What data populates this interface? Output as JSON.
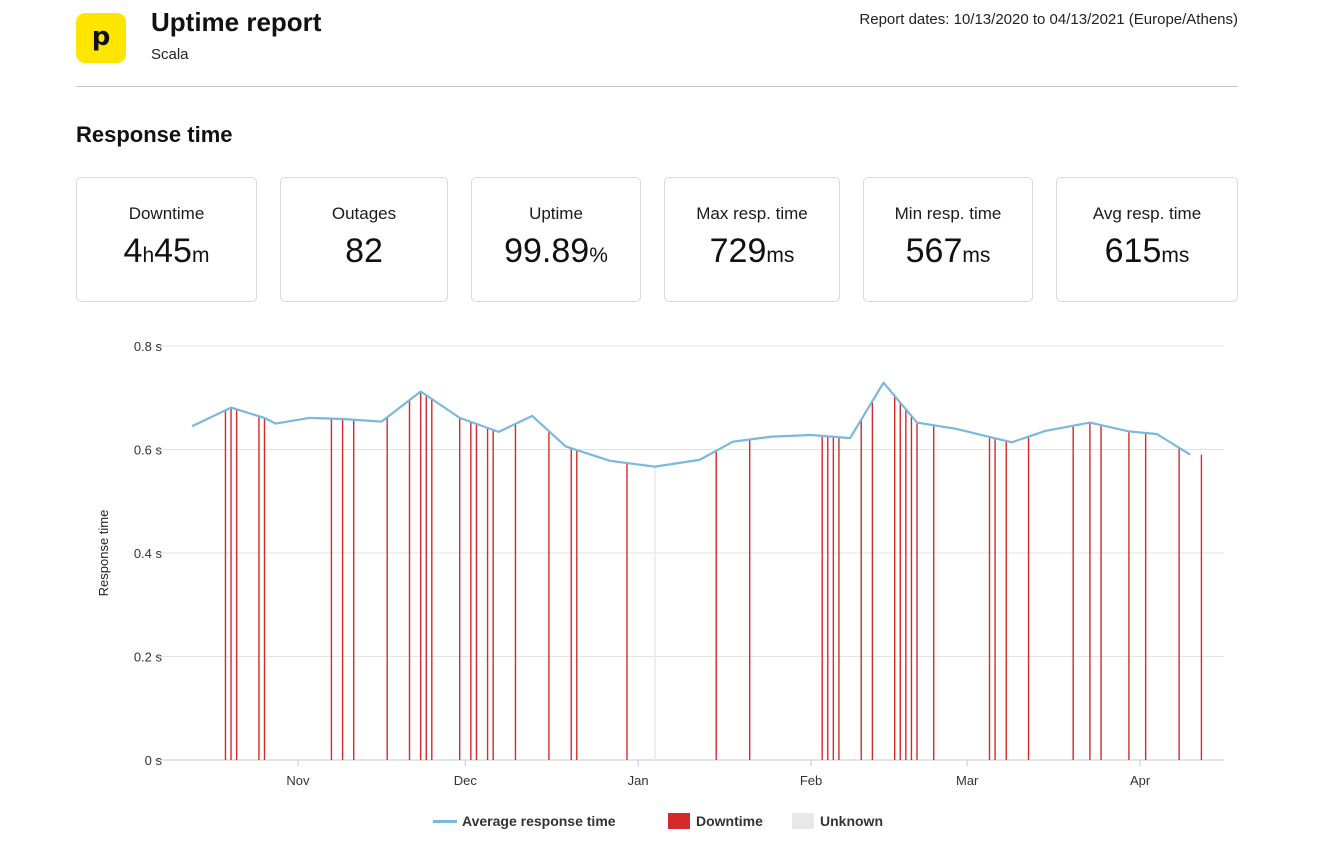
{
  "header": {
    "logo_letter": "p",
    "title": "Uptime report",
    "subtitle": "Scala",
    "report_dates": "Report dates: 10/13/2020 to 04/13/2021 (Europe/Athens)"
  },
  "section_title": "Response time",
  "stats": [
    {
      "label": "Downtime",
      "parts": [
        {
          "v": "4",
          "u": "h"
        },
        {
          "v": "45",
          "u": "m"
        }
      ]
    },
    {
      "label": "Outages",
      "parts": [
        {
          "v": "82",
          "u": ""
        }
      ]
    },
    {
      "label": "Uptime",
      "parts": [
        {
          "v": "99.89",
          "u": "%"
        }
      ]
    },
    {
      "label": "Max resp. time",
      "parts": [
        {
          "v": "729",
          "u": "ms"
        }
      ]
    },
    {
      "label": "Min resp. time",
      "parts": [
        {
          "v": "567",
          "u": "ms"
        }
      ]
    },
    {
      "label": "Avg resp. time",
      "parts": [
        {
          "v": "615",
          "u": "ms"
        }
      ]
    }
  ],
  "colors": {
    "line": "#7ab9dc",
    "downtime": "#d42a2a",
    "unknown": "#e8e8e8",
    "grid": "#e3e3e3"
  },
  "chart_data": {
    "type": "line",
    "ylabel": "Response time",
    "ylim": [
      0,
      0.8
    ],
    "y_ticks": [
      {
        "v": 0,
        "label": "0 s"
      },
      {
        "v": 0.2,
        "label": "0.2 s"
      },
      {
        "v": 0.4,
        "label": "0.4 s"
      },
      {
        "v": 0.6,
        "label": "0.6 s"
      },
      {
        "v": 0.8,
        "label": "0.8 s"
      }
    ],
    "xlim": [
      "2020-10-13",
      "2021-04-13"
    ],
    "x_ticks": [
      {
        "date": "2020-11-01",
        "label": "Nov"
      },
      {
        "date": "2020-12-01",
        "label": "Dec"
      },
      {
        "date": "2021-01-01",
        "label": "Jan"
      },
      {
        "date": "2021-02-01",
        "label": "Feb"
      },
      {
        "date": "2021-03-01",
        "label": "Mar"
      },
      {
        "date": "2021-04-01",
        "label": "Apr"
      }
    ],
    "series": [
      {
        "name": "Average response time",
        "points": [
          [
            "2020-10-13",
            0.645
          ],
          [
            "2020-10-20",
            0.681
          ],
          [
            "2020-10-26",
            0.661
          ],
          [
            "2020-10-28",
            0.65
          ],
          [
            "2020-11-03",
            0.661
          ],
          [
            "2020-11-09",
            0.659
          ],
          [
            "2020-11-16",
            0.654
          ],
          [
            "2020-11-23",
            0.712
          ],
          [
            "2020-11-30",
            0.661
          ],
          [
            "2020-12-07",
            0.634
          ],
          [
            "2020-12-13",
            0.665
          ],
          [
            "2020-12-19",
            0.606
          ],
          [
            "2020-12-27",
            0.578
          ],
          [
            "2021-01-04",
            0.567
          ],
          [
            "2021-01-12",
            0.58
          ],
          [
            "2021-01-18",
            0.615
          ],
          [
            "2021-01-25",
            0.625
          ],
          [
            "2021-02-01",
            0.628
          ],
          [
            "2021-02-08",
            0.622
          ],
          [
            "2021-02-14",
            0.729
          ],
          [
            "2021-02-20",
            0.652
          ],
          [
            "2021-02-27",
            0.64
          ],
          [
            "2021-03-09",
            0.614
          ],
          [
            "2021-03-15",
            0.636
          ],
          [
            "2021-03-23",
            0.652
          ],
          [
            "2021-03-30",
            0.635
          ],
          [
            "2021-04-04",
            0.63
          ],
          [
            "2021-04-10",
            0.59
          ]
        ]
      }
    ],
    "downtime_dates": [
      "2020-10-19",
      "2020-10-20",
      "2020-10-21",
      "2020-10-25",
      "2020-10-26",
      "2020-11-07",
      "2020-11-09",
      "2020-11-11",
      "2020-11-17",
      "2020-11-21",
      "2020-11-23",
      "2020-11-24",
      "2020-11-25",
      "2020-11-30",
      "2020-12-02",
      "2020-12-03",
      "2020-12-05",
      "2020-12-06",
      "2020-12-10",
      "2020-12-16",
      "2020-12-20",
      "2020-12-21",
      "2020-12-30",
      "2021-01-15",
      "2021-01-21",
      "2021-02-03",
      "2021-02-04",
      "2021-02-05",
      "2021-02-06",
      "2021-02-10",
      "2021-02-12",
      "2021-02-16",
      "2021-02-17",
      "2021-02-18",
      "2021-02-19",
      "2021-02-20",
      "2021-02-23",
      "2021-03-05",
      "2021-03-06",
      "2021-03-08",
      "2021-03-12",
      "2021-03-20",
      "2021-03-23",
      "2021-03-25",
      "2021-03-30",
      "2021-04-02",
      "2021-04-08",
      "2021-04-12"
    ],
    "unknown_dates": [
      "2021-01-04"
    ],
    "legend": [
      {
        "label": "Average response time",
        "kind": "line"
      },
      {
        "label": "Downtime",
        "kind": "downtime"
      },
      {
        "label": "Unknown",
        "kind": "unknown"
      }
    ],
    "legend_position": "bottom",
    "grid": true
  }
}
